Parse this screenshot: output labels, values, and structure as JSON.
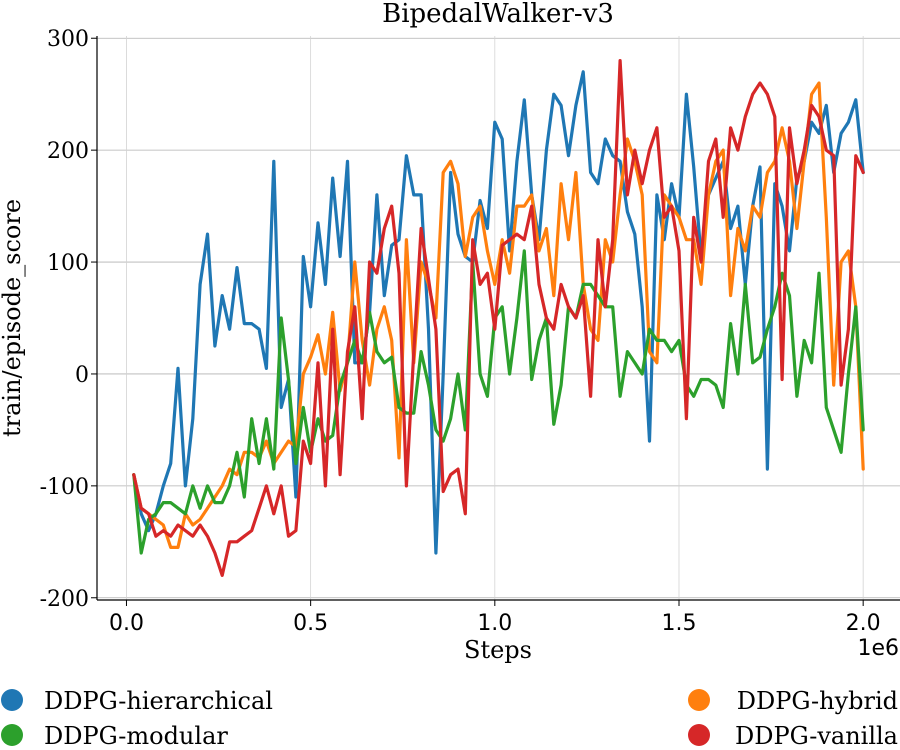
{
  "chart_data": {
    "type": "line",
    "title": "BipedalWalker-v3",
    "xlabel": "Steps",
    "ylabel": "train/episode_score",
    "x_offset_label": "1e6",
    "xlim": [
      -0.08,
      2.1
    ],
    "ylim": [
      -202,
      302
    ],
    "xticks": [
      0.0,
      0.5,
      1.0,
      1.5,
      2.0
    ],
    "xtick_labels": [
      "0.0",
      "0.5",
      "1.0",
      "1.5",
      "2.0"
    ],
    "yticks": [
      -200,
      -100,
      0,
      100,
      200,
      300
    ],
    "ytick_labels": [
      "-200",
      "-100",
      "0",
      "100",
      "200",
      "300"
    ],
    "grid": true,
    "legend": "bottom",
    "series": [
      {
        "name": "DDPG-hierarchical",
        "color": "#1f77b4",
        "x": [
          0.02,
          0.04,
          0.06,
          0.08,
          0.1,
          0.12,
          0.14,
          0.16,
          0.18,
          0.2,
          0.22,
          0.24,
          0.26,
          0.28,
          0.3,
          0.32,
          0.34,
          0.36,
          0.38,
          0.4,
          0.42,
          0.44,
          0.46,
          0.48,
          0.5,
          0.52,
          0.54,
          0.56,
          0.58,
          0.6,
          0.62,
          0.64,
          0.66,
          0.68,
          0.7,
          0.72,
          0.74,
          0.76,
          0.78,
          0.8,
          0.82,
          0.84,
          0.86,
          0.88,
          0.9,
          0.92,
          0.94,
          0.96,
          0.98,
          1.0,
          1.02,
          1.04,
          1.06,
          1.08,
          1.1,
          1.12,
          1.14,
          1.16,
          1.18,
          1.2,
          1.22,
          1.24,
          1.26,
          1.28,
          1.3,
          1.32,
          1.34,
          1.36,
          1.38,
          1.4,
          1.42,
          1.44,
          1.46,
          1.48,
          1.5,
          1.52,
          1.54,
          1.56,
          1.58,
          1.6,
          1.62,
          1.64,
          1.66,
          1.68,
          1.7,
          1.72,
          1.74,
          1.76,
          1.78,
          1.8,
          1.82,
          1.84,
          1.86,
          1.88,
          1.9,
          1.92,
          1.94,
          1.96,
          1.98,
          2.0
        ],
        "y": [
          -90,
          -125,
          -140,
          -125,
          -100,
          -80,
          5,
          -100,
          -40,
          80,
          125,
          25,
          70,
          40,
          95,
          45,
          45,
          40,
          5,
          190,
          -30,
          -5,
          -110,
          105,
          60,
          135,
          80,
          175,
          105,
          190,
          10,
          10,
          55,
          160,
          70,
          115,
          120,
          195,
          160,
          160,
          40,
          -160,
          0,
          180,
          125,
          105,
          100,
          155,
          130,
          225,
          210,
          110,
          190,
          245,
          160,
          120,
          200,
          250,
          240,
          195,
          240,
          270,
          180,
          170,
          210,
          195,
          190,
          145,
          125,
          60,
          -60,
          160,
          120,
          170,
          140,
          250,
          185,
          105,
          160,
          175,
          190,
          130,
          150,
          80,
          150,
          185,
          -85,
          170,
          150,
          110,
          175,
          190,
          225,
          215,
          240,
          180,
          215,
          225,
          245,
          180
        ]
      },
      {
        "name": "DDPG-hybrid",
        "color": "#ff7f0e",
        "x": [
          0.02,
          0.04,
          0.06,
          0.08,
          0.1,
          0.12,
          0.14,
          0.16,
          0.18,
          0.2,
          0.22,
          0.24,
          0.26,
          0.28,
          0.3,
          0.32,
          0.34,
          0.36,
          0.38,
          0.4,
          0.42,
          0.44,
          0.46,
          0.48,
          0.5,
          0.52,
          0.54,
          0.56,
          0.58,
          0.6,
          0.62,
          0.64,
          0.66,
          0.68,
          0.7,
          0.72,
          0.74,
          0.76,
          0.78,
          0.8,
          0.82,
          0.84,
          0.86,
          0.88,
          0.9,
          0.92,
          0.94,
          0.96,
          0.98,
          1.0,
          1.02,
          1.04,
          1.06,
          1.08,
          1.1,
          1.12,
          1.14,
          1.16,
          1.18,
          1.2,
          1.22,
          1.24,
          1.26,
          1.28,
          1.3,
          1.32,
          1.34,
          1.36,
          1.38,
          1.4,
          1.42,
          1.44,
          1.46,
          1.48,
          1.5,
          1.52,
          1.54,
          1.56,
          1.58,
          1.6,
          1.62,
          1.64,
          1.66,
          1.68,
          1.7,
          1.72,
          1.74,
          1.76,
          1.78,
          1.8,
          1.82,
          1.84,
          1.86,
          1.88,
          1.9,
          1.92,
          1.94,
          1.96,
          1.98,
          2.0
        ],
        "y": [
          -90,
          -120,
          -125,
          -130,
          -135,
          -155,
          -155,
          -125,
          -135,
          -130,
          -120,
          -110,
          -100,
          -85,
          -90,
          -70,
          -70,
          -75,
          -60,
          -80,
          -70,
          -60,
          -65,
          0,
          15,
          35,
          0,
          55,
          -15,
          10,
          100,
          30,
          -10,
          40,
          60,
          30,
          -75,
          120,
          10,
          100,
          80,
          50,
          180,
          190,
          170,
          105,
          140,
          150,
          110,
          80,
          120,
          90,
          150,
          150,
          160,
          110,
          130,
          70,
          170,
          120,
          180,
          80,
          40,
          30,
          120,
          100,
          160,
          210,
          190,
          160,
          20,
          10,
          160,
          150,
          140,
          120,
          120,
          80,
          160,
          190,
          200,
          70,
          130,
          110,
          150,
          140,
          180,
          190,
          220,
          190,
          130,
          190,
          250,
          260,
          140,
          -10,
          100,
          110,
          60,
          -85
        ]
      },
      {
        "name": "DDPG-modular",
        "color": "#2ca02c",
        "x": [
          0.02,
          0.04,
          0.06,
          0.08,
          0.1,
          0.12,
          0.14,
          0.16,
          0.18,
          0.2,
          0.22,
          0.24,
          0.26,
          0.28,
          0.3,
          0.32,
          0.34,
          0.36,
          0.38,
          0.4,
          0.42,
          0.44,
          0.46,
          0.48,
          0.5,
          0.52,
          0.54,
          0.56,
          0.58,
          0.6,
          0.62,
          0.64,
          0.66,
          0.68,
          0.7,
          0.72,
          0.74,
          0.76,
          0.78,
          0.8,
          0.82,
          0.84,
          0.86,
          0.88,
          0.9,
          0.92,
          0.94,
          0.96,
          0.98,
          1.0,
          1.02,
          1.04,
          1.06,
          1.08,
          1.1,
          1.12,
          1.14,
          1.16,
          1.18,
          1.2,
          1.22,
          1.24,
          1.26,
          1.28,
          1.3,
          1.32,
          1.34,
          1.36,
          1.38,
          1.4,
          1.42,
          1.44,
          1.46,
          1.48,
          1.5,
          1.52,
          1.54,
          1.56,
          1.58,
          1.6,
          1.62,
          1.64,
          1.66,
          1.68,
          1.7,
          1.72,
          1.74,
          1.76,
          1.78,
          1.8,
          1.82,
          1.84,
          1.86,
          1.88,
          1.9,
          1.92,
          1.94,
          1.96,
          1.98,
          2.0
        ],
        "y": [
          -90,
          -160,
          -130,
          -125,
          -115,
          -115,
          -120,
          -125,
          -100,
          -120,
          -100,
          -115,
          -115,
          -100,
          -70,
          -110,
          -40,
          -80,
          -40,
          -85,
          50,
          -5,
          -80,
          -30,
          -70,
          -40,
          -60,
          -55,
          -10,
          10,
          30,
          10,
          55,
          20,
          10,
          15,
          -30,
          -35,
          -35,
          20,
          -10,
          -50,
          -60,
          -40,
          0,
          -50,
          100,
          0,
          -20,
          50,
          60,
          0,
          50,
          110,
          -5,
          30,
          50,
          -45,
          -10,
          60,
          50,
          80,
          80,
          70,
          60,
          60,
          -20,
          20,
          10,
          0,
          40,
          30,
          30,
          20,
          30,
          -10,
          -20,
          -5,
          -5,
          -10,
          -30,
          45,
          0,
          80,
          10,
          15,
          40,
          60,
          90,
          70,
          -20,
          30,
          10,
          90,
          -30,
          -50,
          -70,
          0,
          60,
          -50
        ]
      },
      {
        "name": "DDPG-vanilla",
        "color": "#d62728",
        "x": [
          0.02,
          0.04,
          0.06,
          0.08,
          0.1,
          0.12,
          0.14,
          0.16,
          0.18,
          0.2,
          0.22,
          0.24,
          0.26,
          0.28,
          0.3,
          0.32,
          0.34,
          0.36,
          0.38,
          0.4,
          0.42,
          0.44,
          0.46,
          0.48,
          0.5,
          0.52,
          0.54,
          0.56,
          0.58,
          0.6,
          0.62,
          0.64,
          0.66,
          0.68,
          0.7,
          0.72,
          0.74,
          0.76,
          0.78,
          0.8,
          0.82,
          0.84,
          0.86,
          0.88,
          0.9,
          0.92,
          0.94,
          0.96,
          0.98,
          1.0,
          1.02,
          1.04,
          1.06,
          1.08,
          1.1,
          1.12,
          1.14,
          1.16,
          1.18,
          1.2,
          1.22,
          1.24,
          1.26,
          1.28,
          1.3,
          1.32,
          1.34,
          1.36,
          1.38,
          1.4,
          1.42,
          1.44,
          1.46,
          1.48,
          1.5,
          1.52,
          1.54,
          1.56,
          1.58,
          1.6,
          1.62,
          1.64,
          1.66,
          1.68,
          1.7,
          1.72,
          1.74,
          1.76,
          1.78,
          1.8,
          1.82,
          1.84,
          1.86,
          1.88,
          1.9,
          1.92,
          1.94,
          1.96,
          1.98,
          2.0
        ],
        "y": [
          -90,
          -120,
          -125,
          -145,
          -140,
          -145,
          -135,
          -140,
          -145,
          -135,
          -145,
          -160,
          -180,
          -150,
          -150,
          -145,
          -140,
          -120,
          -100,
          -125,
          -100,
          -145,
          -140,
          -60,
          -80,
          10,
          -100,
          40,
          -90,
          20,
          60,
          -40,
          100,
          90,
          130,
          150,
          90,
          -100,
          20,
          130,
          85,
          40,
          -105,
          -90,
          -85,
          -125,
          120,
          80,
          90,
          40,
          115,
          120,
          125,
          120,
          150,
          80,
          50,
          40,
          80,
          60,
          50,
          70,
          -20,
          120,
          60,
          120,
          280,
          160,
          200,
          170,
          200,
          220,
          140,
          150,
          110,
          -40,
          140,
          100,
          190,
          210,
          140,
          220,
          200,
          230,
          250,
          260,
          250,
          230,
          -5,
          220,
          170,
          200,
          240,
          230,
          200,
          195,
          -10,
          40,
          195,
          180
        ]
      }
    ]
  }
}
